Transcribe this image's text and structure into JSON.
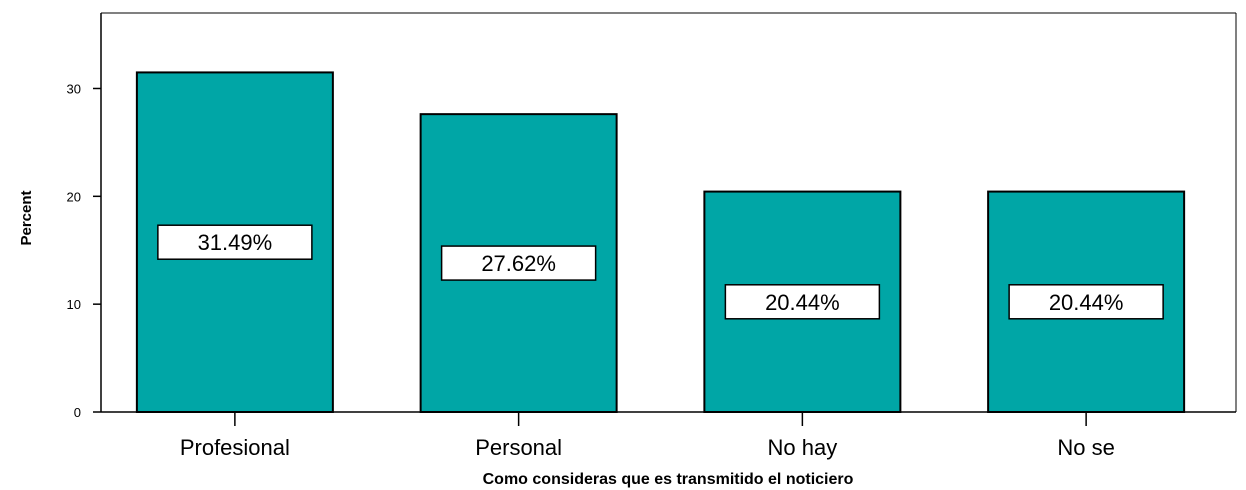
{
  "chart_data": {
    "type": "bar",
    "categories": [
      "Profesional",
      "Personal",
      "No hay",
      "No se"
    ],
    "values": [
      31.49,
      27.62,
      20.44,
      20.44
    ],
    "data_labels": [
      "31.49%",
      "27.62%",
      "20.44%",
      "20.44%"
    ],
    "title": "",
    "xlabel": "Como consideras que es transmitido el noticiero",
    "ylabel": "Percent",
    "ylim": [
      0,
      37
    ],
    "yticks": [
      0,
      10,
      20,
      30
    ],
    "grid": false,
    "bar_color": "#00a6a6",
    "bar_edge_color": "#000000",
    "label_box_color": "#ffffff"
  }
}
